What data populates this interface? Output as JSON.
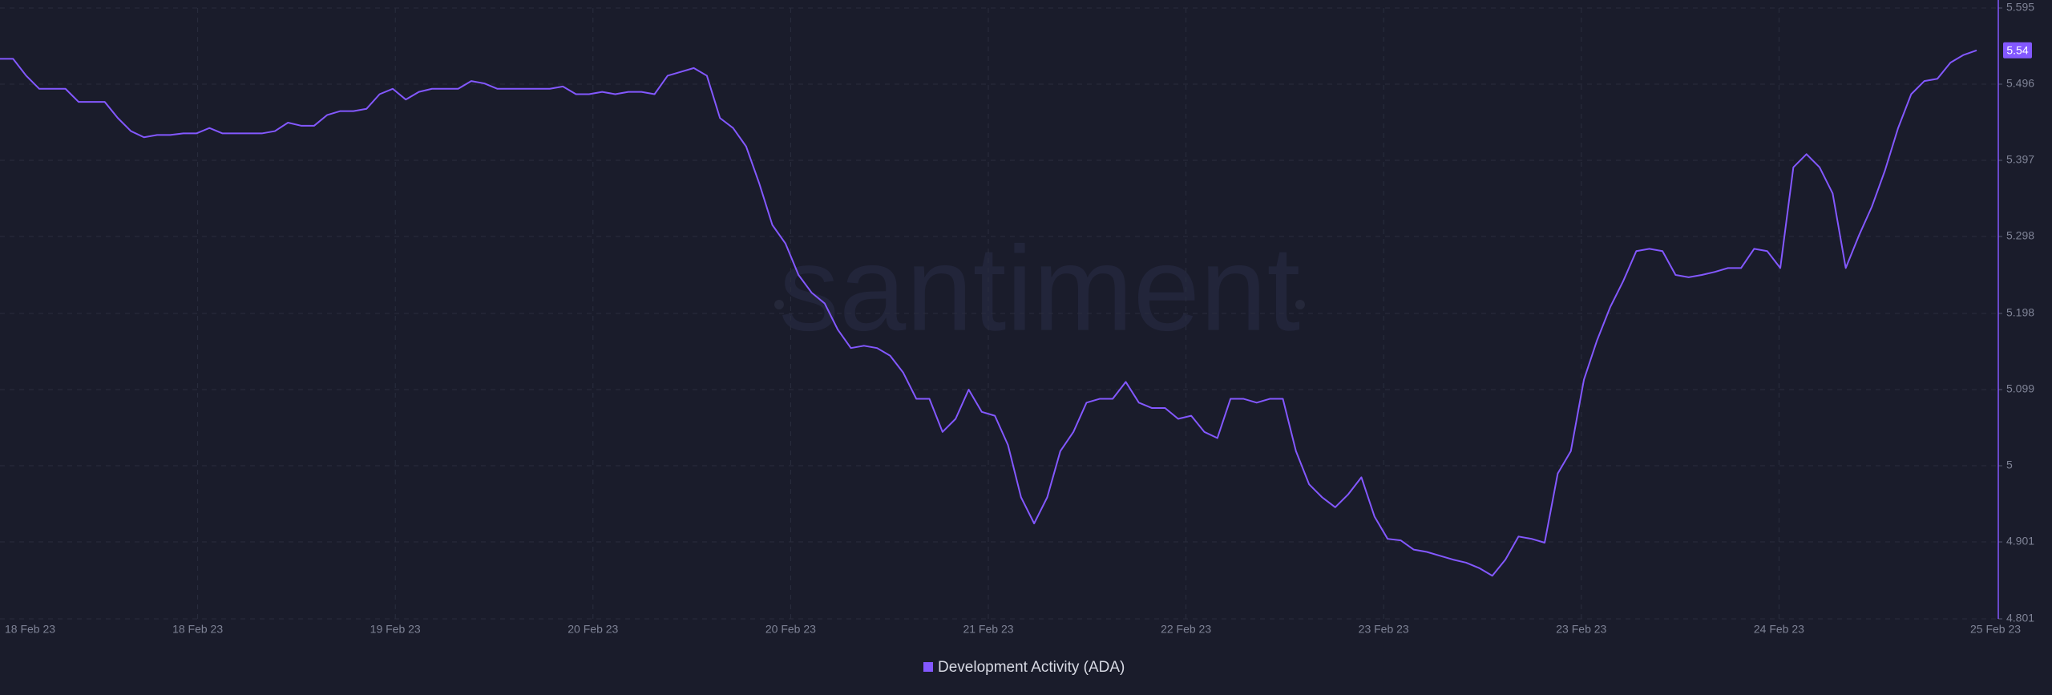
{
  "chart_data": {
    "type": "line",
    "watermark": "santiment",
    "xtick_labels": [
      "18 Feb 23",
      "18 Feb 23",
      "19 Feb 23",
      "20 Feb 23",
      "20 Feb 23",
      "21 Feb 23",
      "22 Feb 23",
      "23 Feb 23",
      "23 Feb 23",
      "24 Feb 23",
      "25 Feb 23"
    ],
    "series": [
      {
        "name": "Development Activity (ADA)",
        "color": "#8358ff",
        "values": [
          5.529,
          5.529,
          5.507,
          5.49,
          5.49,
          5.49,
          5.473,
          5.473,
          5.473,
          5.452,
          5.435,
          5.427,
          5.43,
          5.43,
          5.432,
          5.432,
          5.439,
          5.432,
          5.432,
          5.432,
          5.432,
          5.435,
          5.446,
          5.442,
          5.442,
          5.456,
          5.461,
          5.461,
          5.464,
          5.483,
          5.49,
          5.476,
          5.486,
          5.49,
          5.49,
          5.49,
          5.5,
          5.497,
          5.49,
          5.49,
          5.49,
          5.49,
          5.49,
          5.493,
          5.483,
          5.483,
          5.486,
          5.483,
          5.486,
          5.486,
          5.483,
          5.507,
          5.512,
          5.517,
          5.507,
          5.452,
          5.439,
          5.415,
          5.367,
          5.313,
          5.289,
          5.248,
          5.225,
          5.211,
          5.177,
          5.153,
          5.156,
          5.153,
          5.143,
          5.121,
          5.087,
          5.087,
          5.044,
          5.061,
          5.099,
          5.07,
          5.065,
          5.027,
          4.959,
          4.925,
          4.959,
          5.019,
          5.044,
          5.082,
          5.087,
          5.087,
          5.109,
          5.082,
          5.075,
          5.075,
          5.061,
          5.065,
          5.044,
          5.036,
          5.087,
          5.087,
          5.082,
          5.087,
          5.087,
          5.019,
          4.976,
          4.959,
          4.946,
          4.963,
          4.985,
          4.934,
          4.905,
          4.903,
          4.891,
          4.888,
          4.883,
          4.878,
          4.874,
          4.867,
          4.857,
          4.878,
          4.908,
          4.905,
          4.9,
          4.99,
          5.019,
          5.112,
          5.163,
          5.206,
          5.24,
          5.279,
          5.282,
          5.279,
          5.248,
          5.245,
          5.248,
          5.252,
          5.257,
          5.257,
          5.282,
          5.279,
          5.257,
          5.388,
          5.405,
          5.388,
          5.354,
          5.257,
          5.299,
          5.337,
          5.384,
          5.439,
          5.483,
          5.5,
          5.503,
          5.524,
          5.534,
          5.54
        ]
      }
    ],
    "ylim": [
      4.801,
      5.595
    ],
    "yticks": [
      4.801,
      4.901,
      5,
      5.099,
      5.198,
      5.298,
      5.397,
      5.496,
      5.595
    ],
    "grid": true
  }
}
